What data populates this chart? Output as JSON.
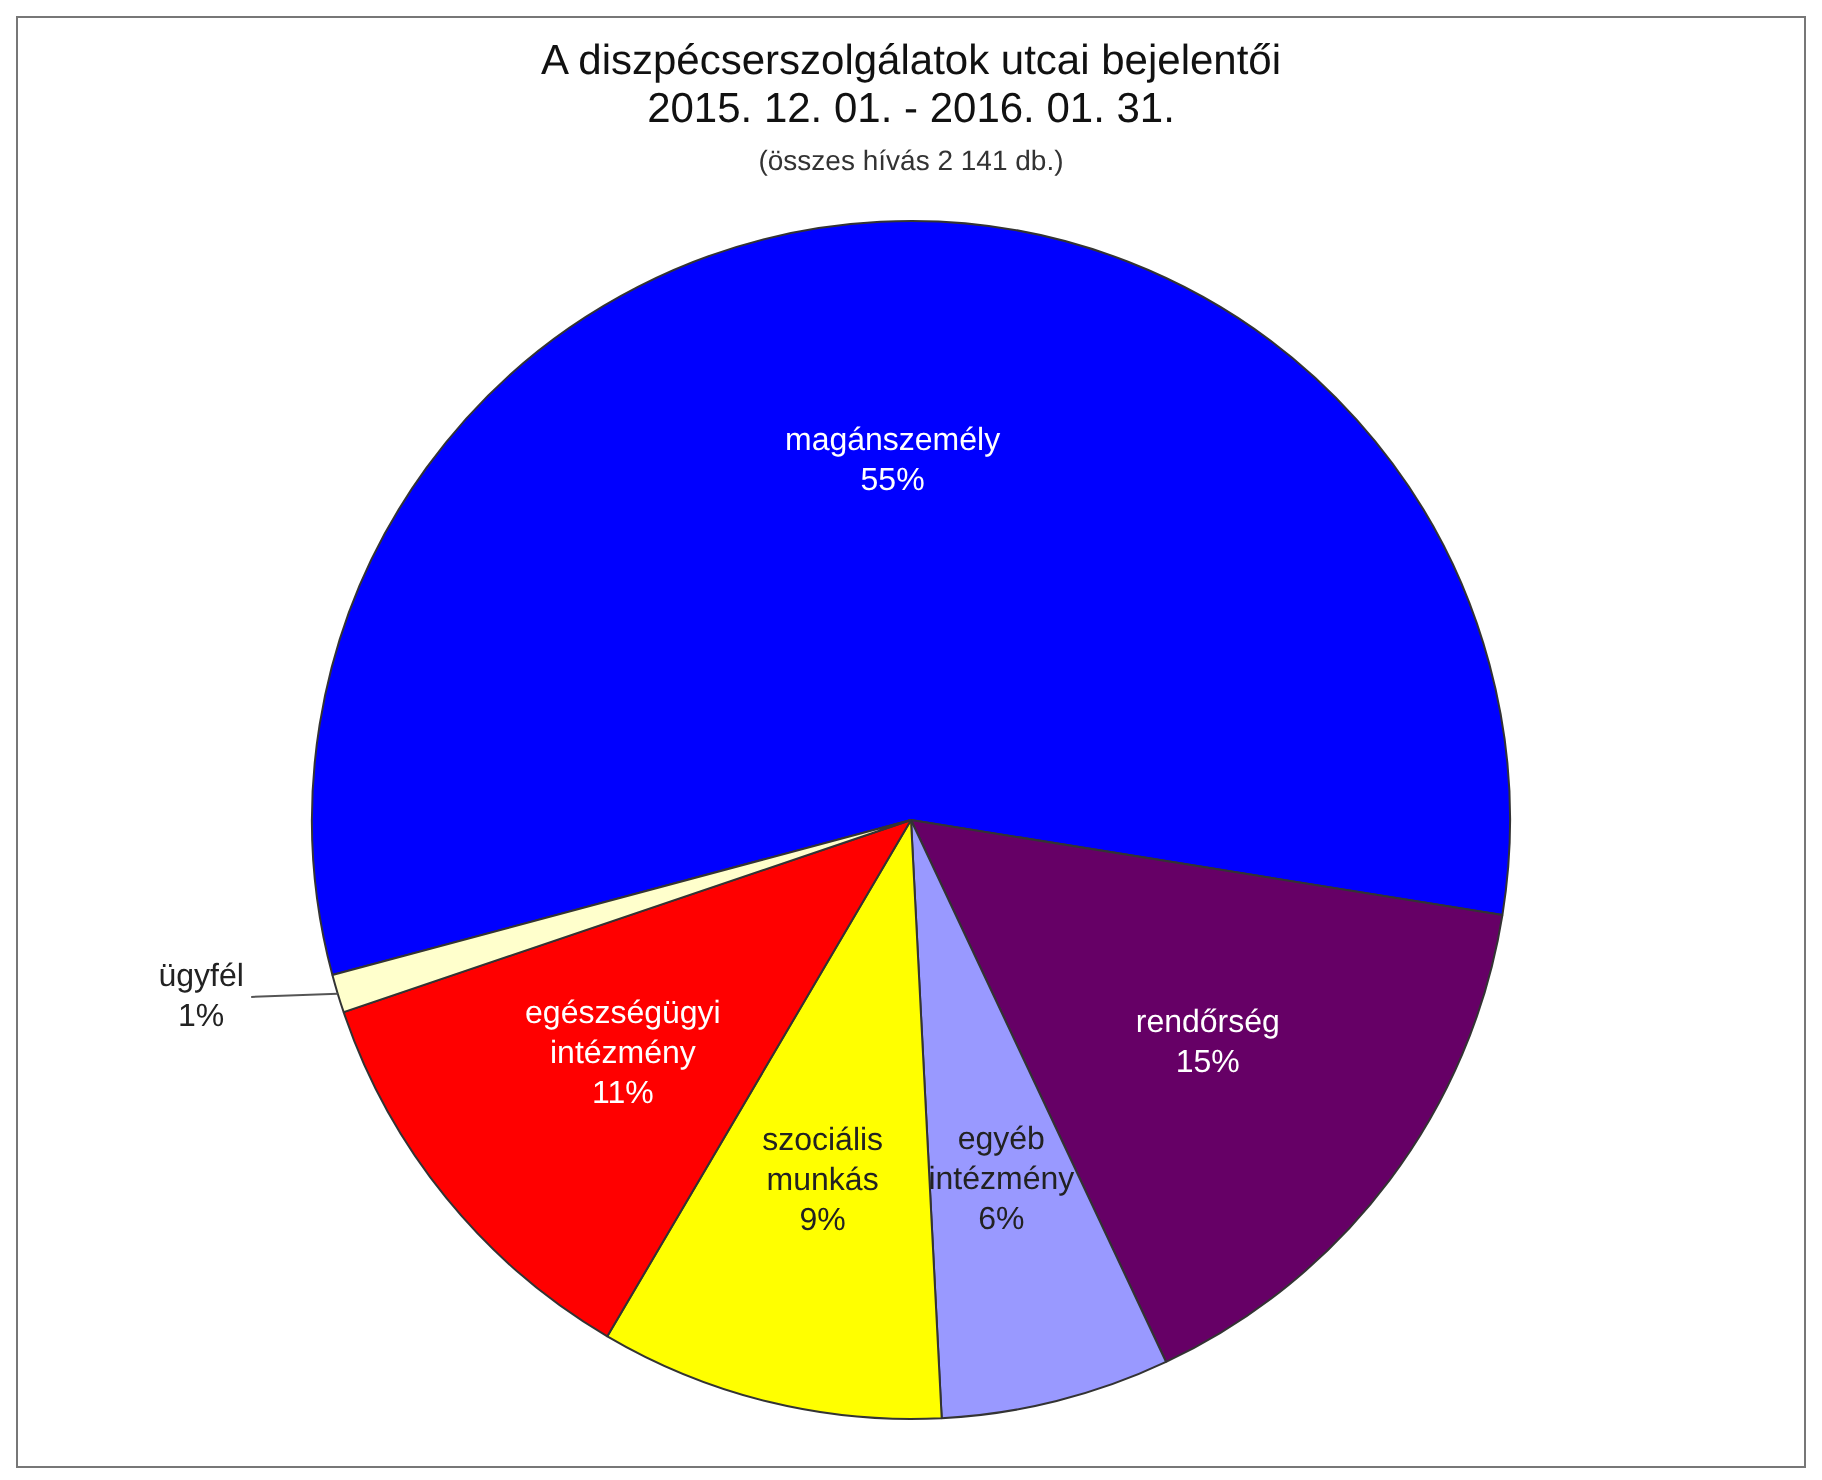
{
  "chart_data": {
    "type": "pie",
    "title": "A diszpécserszolgálatok utcai bejelentői",
    "subtitle": "2015. 12. 01. - 2016. 01. 31.",
    "annotations": [
      "(összes hívás 2 141 db.)"
    ],
    "categories": [
      "magánszemély",
      "rendőrség",
      "egyéb intézmény",
      "szociális munkás",
      "egészségügyi intézmény",
      "ügyfél"
    ],
    "values": [
      55,
      15,
      6,
      9,
      11,
      1
    ],
    "colors": [
      "#0000ff",
      "#660066",
      "#9999ff",
      "#ffff00",
      "#ff0000",
      "#ffffcc"
    ],
    "value_labels": [
      "55%",
      "15%",
      "6%",
      "9%",
      "11%",
      "1%"
    ],
    "legend": false
  }
}
